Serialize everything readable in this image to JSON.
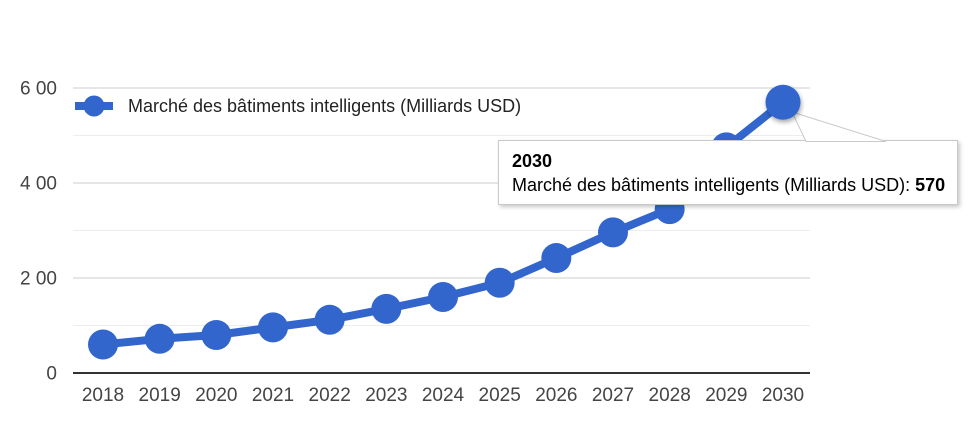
{
  "legend": {
    "label": "Marché des bâtiments intelligents (Milliards USD)"
  },
  "tooltip": {
    "year": "2030",
    "series_label": "Marché des bâtiments intelligents (Milliards USD):",
    "value": "570"
  },
  "chart_data": {
    "type": "line",
    "title": "",
    "xlabel": "",
    "ylabel": "",
    "categories": [
      "2018",
      "2019",
      "2020",
      "2021",
      "2022",
      "2023",
      "2024",
      "2025",
      "2026",
      "2027",
      "2028",
      "2029",
      "2030"
    ],
    "series": [
      {
        "name": "Marché des bâtiments intelligents (Milliards USD)",
        "values": [
          60,
          72,
          80,
          96,
          112,
          135,
          160,
          190,
          242,
          296,
          345,
          475,
          570
        ]
      }
    ],
    "ylim": [
      0,
      600
    ],
    "y_major_ticks": [
      {
        "value": 0,
        "label": "0"
      },
      {
        "value": 200,
        "label": "2 00"
      },
      {
        "value": 400,
        "label": "4 00"
      },
      {
        "value": 600,
        "label": "6 00"
      }
    ],
    "y_minor_ticks": [
      100,
      300,
      500
    ],
    "grid": true,
    "legend_position": "top-left",
    "highlighted_category": "2030",
    "highlighted_value": 570,
    "colors": {
      "series": "#3366cc",
      "major_grid": "#cccccc",
      "minor_grid": "#ededed",
      "baseline": "#333333",
      "axis_label": "#444444",
      "tooltip_border": "#c9c9c9"
    }
  }
}
